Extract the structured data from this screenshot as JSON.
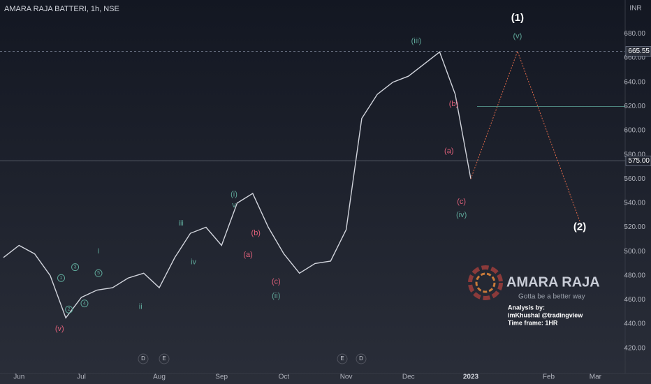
{
  "chart_data": {
    "type": "line",
    "title": "AMARA RAJA BATTERI, 1h, NSE",
    "y_axis_label": "INR",
    "categories": [
      null,
      "Jun",
      null,
      null,
      null,
      "Jul",
      null,
      null,
      null,
      null,
      "Aug",
      null,
      null,
      null,
      "Sep",
      null,
      null,
      null,
      "Oct",
      null,
      null,
      null,
      "Nov",
      null,
      null,
      null,
      "Dec",
      null,
      null,
      null,
      "2023",
      null,
      null,
      null,
      null,
      "Feb",
      null,
      null,
      "Mar"
    ],
    "series": [
      {
        "color": "#d1d4dc",
        "values": [
          495,
          505,
          498,
          480,
          445,
          462,
          468,
          470,
          478,
          482,
          470,
          495,
          515,
          520,
          505,
          540,
          548,
          520,
          498,
          482,
          490,
          492,
          518,
          610,
          630,
          640,
          645,
          655,
          665,
          630,
          560,
          null,
          null,
          null,
          null,
          null,
          null,
          null,
          null
        ]
      },
      {
        "color": "#e06a4a",
        "values": [
          null,
          null,
          null,
          null,
          null,
          null,
          null,
          null,
          null,
          null,
          null,
          null,
          null,
          null,
          null,
          null,
          null,
          null,
          null,
          null,
          null,
          null,
          null,
          null,
          null,
          null,
          null,
          null,
          null,
          null,
          560,
          null,
          null,
          665.55,
          null,
          null,
          null,
          525,
          null
        ]
      }
    ],
    "ylim": [
      399,
      708
    ],
    "yticks": [
      {
        "value": 420,
        "label": "420.00"
      },
      {
        "value": 440,
        "label": "440.00"
      },
      {
        "value": 460,
        "label": "460.00"
      },
      {
        "value": 480,
        "label": "480.00"
      },
      {
        "value": 500,
        "label": "500.00"
      },
      {
        "value": 520,
        "label": "520.00"
      },
      {
        "value": 540,
        "label": "540.00"
      },
      {
        "value": 560,
        "label": "560.00"
      },
      {
        "value": 580,
        "label": "580.00"
      },
      {
        "value": 600,
        "label": "600.00"
      },
      {
        "value": 620,
        "label": "620.00"
      },
      {
        "value": 640,
        "label": "640.00"
      },
      {
        "value": 660,
        "label": "660.00"
      },
      {
        "value": 680,
        "label": "680.00"
      }
    ],
    "price_levels": [
      {
        "value": 665.55,
        "label": "665.55"
      },
      {
        "value": 575,
        "label": "575.00"
      }
    ],
    "target_line": 620,
    "annotations": [
      {
        "text": "(1)",
        "x": 33,
        "y": 693,
        "color": "#ffffff"
      },
      {
        "text": "(v)",
        "x": 33,
        "y": 678,
        "color": "#5fa89a"
      },
      {
        "text": "(2)",
        "x": 37,
        "y": 520,
        "color": "#ffffff"
      },
      {
        "text": "(iii)",
        "x": 26.5,
        "y": 674,
        "color": "#5fa89a"
      },
      {
        "text": "(b)",
        "x": 28.9,
        "y": 622,
        "color": "#e0607a"
      },
      {
        "text": "(a)",
        "x": 28.6,
        "y": 583,
        "color": "#e0607a"
      },
      {
        "text": "(c)",
        "x": 29.4,
        "y": 541,
        "color": "#e0607a"
      },
      {
        "text": "(iv)",
        "x": 29.4,
        "y": 530,
        "color": "#5fa89a"
      },
      {
        "text": "(i)",
        "x": 14.8,
        "y": 547,
        "color": "#5fa89a"
      },
      {
        "text": "v",
        "x": 14.8,
        "y": 538,
        "color": "#5fa89a"
      },
      {
        "text": "iii",
        "x": 11.4,
        "y": 523,
        "color": "#5fa89a"
      },
      {
        "text": "iv",
        "x": 12.2,
        "y": 491,
        "color": "#5fa89a"
      },
      {
        "text": "(b)",
        "x": 16.2,
        "y": 515,
        "color": "#e0607a"
      },
      {
        "text": "(a)",
        "x": 15.7,
        "y": 497,
        "color": "#e0607a"
      },
      {
        "text": "(c)",
        "x": 17.5,
        "y": 475,
        "color": "#e0607a"
      },
      {
        "text": "(ii)",
        "x": 17.5,
        "y": 463,
        "color": "#5fa89a"
      },
      {
        "text": "i",
        "x": 6.1,
        "y": 500,
        "color": "#5fa89a"
      },
      {
        "text": "ii",
        "x": 8.8,
        "y": 454,
        "color": "#5fa89a"
      },
      {
        "text": "(v)",
        "x": 3.6,
        "y": 436,
        "color": "#e0607a"
      },
      {
        "text": "1",
        "x": 3.7,
        "y": 478,
        "color": "#5fa89a",
        "circled": true
      },
      {
        "text": "2",
        "x": 4.2,
        "y": 452,
        "color": "#5fa89a",
        "circled": true
      },
      {
        "text": "3",
        "x": 4.6,
        "y": 487,
        "color": "#5fa89a",
        "circled": true
      },
      {
        "text": "4",
        "x": 5.2,
        "y": 457,
        "color": "#5fa89a",
        "circled": true
      },
      {
        "text": "5",
        "x": 6.1,
        "y": 482,
        "color": "#5fa89a",
        "circled": true
      }
    ],
    "event_markers": [
      "D",
      "E",
      "E",
      "D"
    ],
    "logo": {
      "name": "AMARA RAJA",
      "tagline": "Gotta be a better way"
    },
    "notes": [
      "Analysis by:",
      "imKhushal @tradingview",
      "Time frame: 1HR"
    ]
  }
}
